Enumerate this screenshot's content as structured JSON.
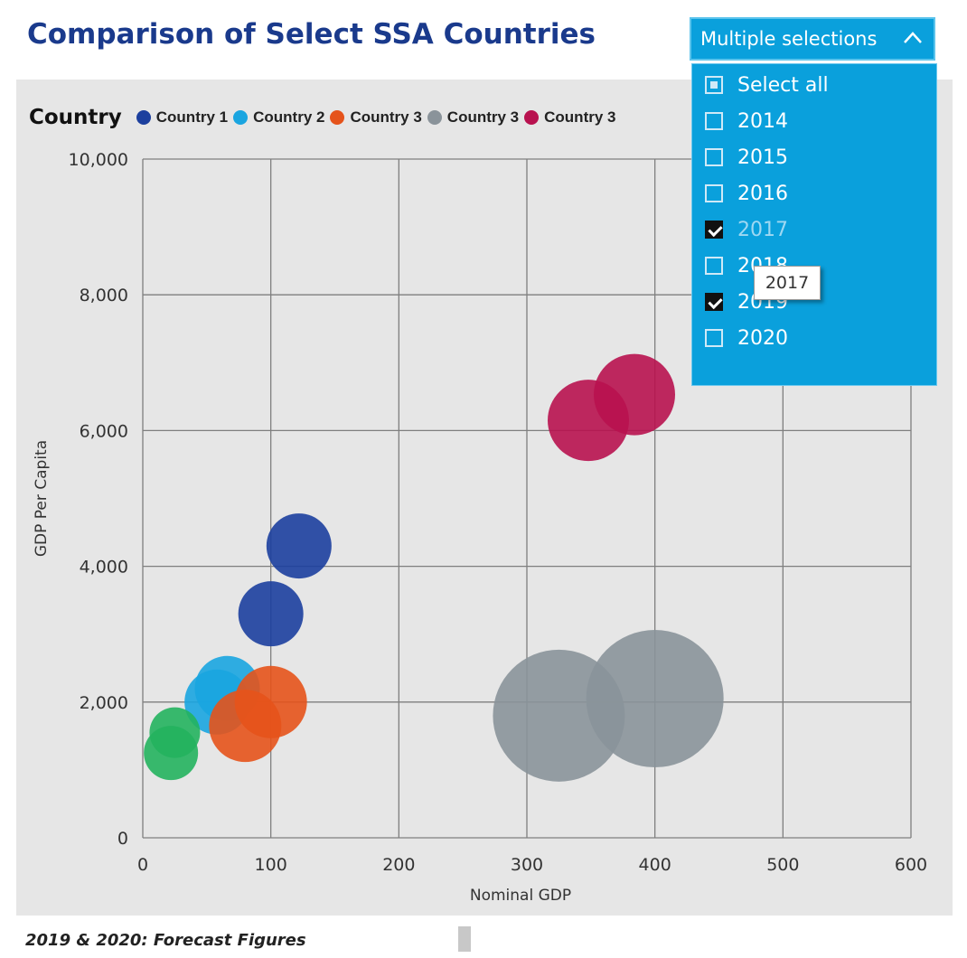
{
  "title": "Comparison of Select SSA Countries",
  "legend": {
    "title": "Country",
    "items": [
      {
        "label": "Country 1",
        "color": "#1c3f9e"
      },
      {
        "label": "Country 2",
        "color": "#1aa5e0"
      },
      {
        "label": "Country 3",
        "color": "#e5531b"
      },
      {
        "label": "Country 3",
        "color": "#8a939a"
      },
      {
        "label": "Country 3",
        "color": "#b8124f"
      }
    ]
  },
  "dropdown": {
    "label": "Multiple selections",
    "options": [
      {
        "label": "Select all",
        "state": "partial"
      },
      {
        "label": "2014",
        "state": "unchecked"
      },
      {
        "label": "2015",
        "state": "unchecked"
      },
      {
        "label": "2016",
        "state": "unchecked"
      },
      {
        "label": "2017",
        "state": "checked"
      },
      {
        "label": "2018",
        "state": "unchecked"
      },
      {
        "label": "2019",
        "state": "checked"
      },
      {
        "label": "2020",
        "state": "unchecked"
      }
    ],
    "tooltip": "2017"
  },
  "footnote": "2019 & 2020: Forecast Figures",
  "chart_data": {
    "type": "scatter",
    "xlabel": "Nominal GDP",
    "ylabel": "GDP Per Capita",
    "xlim": [
      0,
      600
    ],
    "ylim": [
      0,
      10000
    ],
    "xticks": [
      0,
      100,
      200,
      300,
      400,
      500,
      600
    ],
    "yticks": [
      0,
      2000,
      4000,
      6000,
      8000,
      10000
    ],
    "xtick_labels": [
      "0",
      "100",
      "200",
      "300",
      "400",
      "500",
      "600"
    ],
    "ytick_labels": [
      "0",
      "2,000",
      "4,000",
      "6,000",
      "8,000",
      "10,000"
    ],
    "grid": true,
    "legend_position": "top-left",
    "series": [
      {
        "name": "Country 1",
        "color": "#1c3f9e",
        "points": [
          {
            "x": 100,
            "y": 3300,
            "size": 36
          },
          {
            "x": 122,
            "y": 4300,
            "size": 36
          }
        ]
      },
      {
        "name": "Country 2",
        "color": "#1aa5e0",
        "points": [
          {
            "x": 58,
            "y": 2000,
            "size": 36
          },
          {
            "x": 66,
            "y": 2200,
            "size": 36
          }
        ]
      },
      {
        "name": "Country 3",
        "color": "#e5531b",
        "points": [
          {
            "x": 80,
            "y": 1650,
            "size": 40
          },
          {
            "x": 100,
            "y": 2000,
            "size": 40
          }
        ]
      },
      {
        "name": "Country 3",
        "color": "#8a939a",
        "points": [
          {
            "x": 325,
            "y": 1800,
            "size": 73
          },
          {
            "x": 400,
            "y": 2050,
            "size": 76
          }
        ]
      },
      {
        "name": "Country 3",
        "color": "#b8124f",
        "points": [
          {
            "x": 348,
            "y": 6150,
            "size": 45
          },
          {
            "x": 384,
            "y": 6530,
            "size": 45
          }
        ]
      },
      {
        "name": "",
        "color": "#23b35e",
        "points": [
          {
            "x": 22,
            "y": 1250,
            "size": 30
          },
          {
            "x": 25,
            "y": 1550,
            "size": 28
          }
        ]
      }
    ]
  }
}
